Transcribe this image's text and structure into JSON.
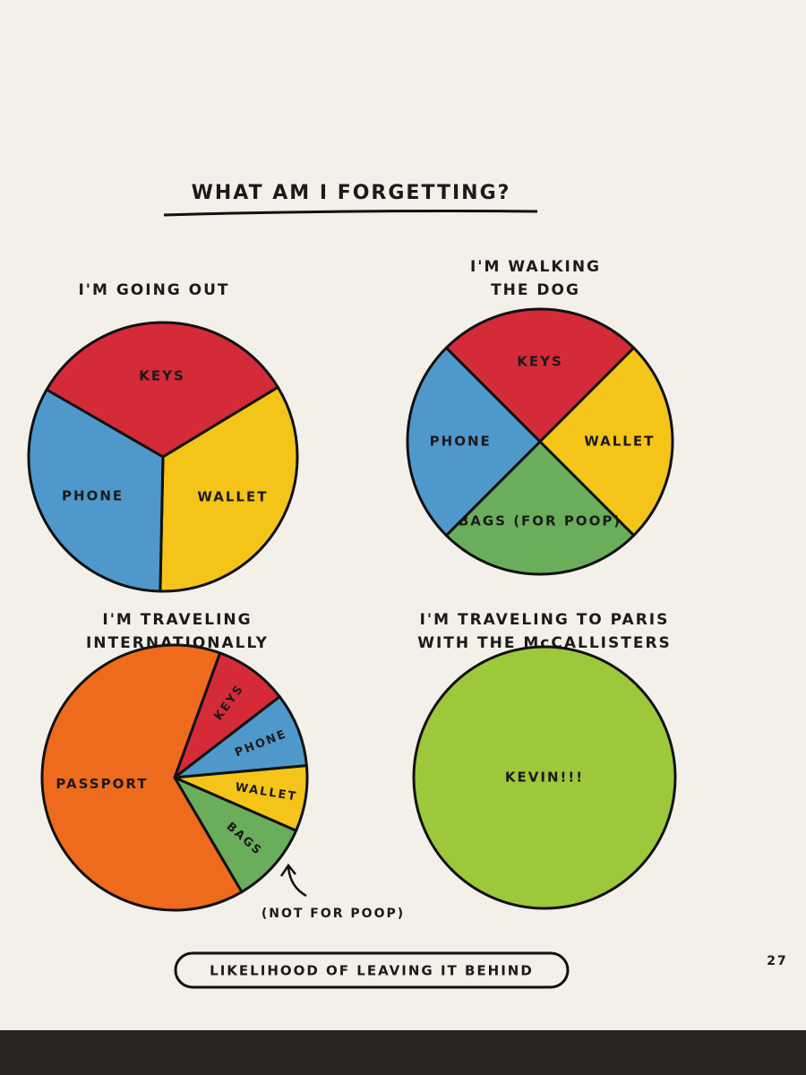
{
  "title": "WHAT AM I FORGETTING?",
  "caption": "LIKELIHOOD OF LEAVING IT BEHIND",
  "page_number": "27",
  "chart_data": [
    {
      "type": "pie",
      "title": [
        "I'M GOING OUT"
      ],
      "categories": [
        "KEYS",
        "WALLET",
        "PHONE"
      ],
      "values": [
        33,
        34,
        33
      ],
      "colors": [
        "#d52a38",
        "#f4c419",
        "#4f98cc"
      ]
    },
    {
      "type": "pie",
      "title": [
        "I'M WALKING",
        "THE DOG"
      ],
      "categories": [
        "KEYS",
        "WALLET",
        "BAGS (FOR POOP)",
        "PHONE"
      ],
      "values": [
        25,
        25,
        25,
        25
      ],
      "colors": [
        "#d52a38",
        "#f4c419",
        "#6aae5c",
        "#4f98cc"
      ]
    },
    {
      "type": "pie",
      "title": [
        "I'M TRAVELING",
        "INTERNATIONALLY"
      ],
      "categories": [
        "KEYS",
        "PHONE",
        "WALLET",
        "BAGS",
        "PASSPORT"
      ],
      "values": [
        9,
        9,
        8,
        10,
        64
      ],
      "colors": [
        "#d52a38",
        "#4f98cc",
        "#f4c419",
        "#6aae5c",
        "#ee6b1d"
      ],
      "annotation": "(NOT FOR POOP)"
    },
    {
      "type": "pie",
      "title": [
        "I'M TRAVELING TO PARIS",
        "WITH THE McCALLISTERS"
      ],
      "categories": [
        "KEVIN!!!"
      ],
      "values": [
        100
      ],
      "colors": [
        "#9dc83b"
      ]
    }
  ]
}
